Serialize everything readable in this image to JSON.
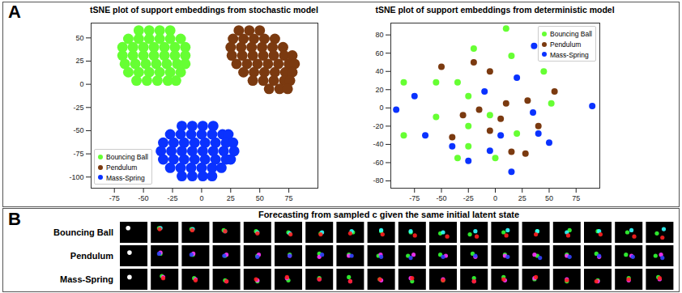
{
  "panel_labels": [
    "A",
    "B"
  ],
  "chart_data": [
    {
      "type": "scatter",
      "title": "tSNE plot of support embeddings from stochastic model",
      "xlim": [
        -95,
        100
      ],
      "ylim": [
        -112,
        66
      ],
      "xticks": [
        -75,
        -50,
        -25,
        0,
        25,
        50,
        75
      ],
      "yticks": [
        -100,
        -75,
        -50,
        -25,
        0,
        25,
        50
      ],
      "legend": "lower left",
      "grid": false,
      "series": [
        {
          "name": "Bouncing Ball",
          "color": "#66ff33",
          "marker": "circle",
          "x": [
            -54,
            -45,
            -36,
            -27,
            -63,
            -54,
            -45,
            -36,
            -27,
            -18,
            -68,
            -59,
            -50,
            -41,
            -32,
            -23,
            -14,
            -68,
            -59,
            -50,
            -41,
            -32,
            -23,
            -14,
            -66,
            -57,
            -48,
            -39,
            -30,
            -21,
            -14,
            -63,
            -54,
            -45,
            -36,
            -27,
            -18,
            -56,
            -47,
            -38,
            -29,
            -22
          ],
          "values": [
            58,
            58,
            58,
            58,
            49,
            49,
            49,
            49,
            49,
            49,
            40,
            40,
            40,
            40,
            40,
            40,
            40,
            31,
            31,
            31,
            31,
            31,
            31,
            31,
            22,
            22,
            22,
            22,
            22,
            22,
            22,
            13,
            13,
            13,
            13,
            13,
            13,
            4,
            4,
            4,
            4,
            4
          ]
        },
        {
          "name": "Pendulum",
          "color": "#7b3a10",
          "marker": "circle",
          "x": [
            32,
            41,
            50,
            27,
            36,
            45,
            54,
            63,
            25,
            34,
            43,
            52,
            61,
            70,
            26,
            35,
            44,
            53,
            62,
            71,
            78,
            30,
            39,
            48,
            57,
            66,
            75,
            80,
            36,
            45,
            54,
            63,
            72,
            78,
            44,
            53,
            62,
            71,
            76,
            58,
            67,
            74
          ],
          "values": [
            58,
            58,
            58,
            49,
            49,
            49,
            49,
            49,
            40,
            40,
            40,
            40,
            40,
            40,
            31,
            31,
            31,
            31,
            31,
            31,
            31,
            22,
            22,
            22,
            22,
            22,
            22,
            22,
            13,
            13,
            13,
            13,
            13,
            13,
            4,
            4,
            4,
            4,
            4,
            -5,
            -5,
            -5
          ]
        },
        {
          "name": "Mass-Spring",
          "color": "#0a32ff",
          "marker": "circle",
          "x": [
            -17,
            -8,
            1,
            10,
            -27,
            -18,
            -9,
            0,
            9,
            18,
            23,
            -33,
            -24,
            -15,
            -6,
            3,
            12,
            21,
            27,
            -35,
            -26,
            -17,
            -8,
            1,
            10,
            19,
            28,
            -33,
            -24,
            -15,
            -6,
            3,
            12,
            21,
            25,
            -27,
            -18,
            -9,
            0,
            9,
            17,
            -17,
            -8,
            1,
            9
          ],
          "values": [
            -45,
            -45,
            -45,
            -45,
            -54,
            -54,
            -54,
            -54,
            -54,
            -54,
            -54,
            -63,
            -63,
            -63,
            -63,
            -63,
            -63,
            -63,
            -63,
            -72,
            -72,
            -72,
            -72,
            -72,
            -72,
            -72,
            -72,
            -81,
            -81,
            -81,
            -81,
            -81,
            -81,
            -81,
            -81,
            -90,
            -90,
            -90,
            -90,
            -90,
            -90,
            -99,
            -99,
            -99,
            -99
          ]
        }
      ]
    },
    {
      "type": "scatter",
      "title": "tSNE plot of support embeddings from deterministic model",
      "xlim": [
        -97,
        97
      ],
      "ylim": [
        -88,
        93
      ],
      "xticks": [
        -75,
        -50,
        -25,
        0,
        25,
        50,
        75
      ],
      "yticks": [
        -80,
        -60,
        -40,
        -20,
        0,
        20,
        40,
        60,
        80
      ],
      "legend": "upper right",
      "grid": false,
      "series": [
        {
          "name": "Bouncing Ball",
          "color": "#66ff33",
          "marker": "circle",
          "x": [
            10,
            15,
            -85,
            -20,
            -35,
            -55,
            -25,
            45,
            52,
            20,
            -25,
            -55,
            -25,
            -85,
            0,
            -5,
            -35
          ],
          "values": [
            87,
            57,
            28,
            65,
            28,
            28,
            13,
            40,
            5,
            -28,
            -20,
            -10,
            -42,
            -30,
            -55,
            -8,
            -55
          ]
        },
        {
          "name": "Pendulum",
          "color": "#7b3a10",
          "marker": "circle",
          "x": [
            -50,
            -20,
            -5,
            10,
            30,
            -30,
            55,
            40,
            28,
            -15,
            -40,
            -5,
            15,
            5
          ],
          "values": [
            45,
            50,
            40,
            5,
            8,
            -8,
            18,
            -20,
            -50,
            -2,
            -32,
            -25,
            -48,
            -12
          ]
        },
        {
          "name": "Mass-Spring",
          "color": "#0a32ff",
          "marker": "circle",
          "x": [
            36,
            90,
            -92,
            -75,
            -65,
            -40,
            -25,
            15,
            50,
            40,
            20,
            35,
            -10,
            5,
            -5
          ],
          "values": [
            68,
            2,
            -2,
            13,
            -30,
            -42,
            -58,
            -70,
            -38,
            -28,
            33,
            -5,
            18,
            -30,
            -47
          ]
        }
      ]
    }
  ],
  "forecast": {
    "title": "Forecasting from sampled c given the same initial latent state",
    "rows": [
      {
        "label": "Bouncing Ball",
        "initial": {
          "color": "#ffffff",
          "x": 0.3,
          "y": 0.3
        },
        "tracks": [
          {
            "color": "#33ff33",
            "x": [
              0.3,
              0.35,
              0.4,
              0.45,
              0.5,
              0.55,
              0.6,
              0.5,
              0.45,
              0.4,
              0.35,
              0.45,
              0.55,
              0.6,
              0.5,
              0.45,
              0.4
            ],
            "y": [
              0.3,
              0.35,
              0.4,
              0.45,
              0.5,
              0.55,
              0.5,
              0.45,
              0.5,
              0.55,
              0.6,
              0.5,
              0.45,
              0.4,
              0.45,
              0.5,
              0.55
            ]
          },
          {
            "color": "#33ffff",
            "x": [
              0.35,
              0.4,
              0.45,
              0.5,
              0.55,
              0.6,
              0.55,
              0.5,
              0.45,
              0.5,
              0.55,
              0.6,
              0.55,
              0.5,
              0.55,
              0.6,
              0.65
            ],
            "y": [
              0.3,
              0.35,
              0.45,
              0.5,
              0.55,
              0.5,
              0.45,
              0.4,
              0.45,
              0.5,
              0.45,
              0.4,
              0.45,
              0.5,
              0.45,
              0.4,
              0.35
            ]
          },
          {
            "color": "#ff2020",
            "x": [
              0.32,
              0.38,
              0.45,
              0.5,
              0.58,
              0.55,
              0.5,
              0.55,
              0.6,
              0.65,
              0.6,
              0.55,
              0.5,
              0.55,
              0.6,
              0.7,
              0.6
            ],
            "y": [
              0.35,
              0.4,
              0.45,
              0.55,
              0.6,
              0.6,
              0.55,
              0.6,
              0.65,
              0.7,
              0.7,
              0.65,
              0.6,
              0.65,
              0.6,
              0.7,
              0.75
            ]
          }
        ]
      },
      {
        "label": "Pendulum",
        "initial": {
          "color": "#ffffff",
          "x": 0.35,
          "y": 0.35
        },
        "tracks": [
          {
            "color": "#33ff33",
            "x": [
              0.35,
              0.4,
              0.45,
              0.5,
              0.55,
              0.5,
              0.45,
              0.4,
              0.35,
              0.4,
              0.45,
              0.5,
              0.55,
              0.5,
              0.45,
              0.4,
              0.35
            ],
            "y": [
              0.4,
              0.45,
              0.5,
              0.5,
              0.45,
              0.4,
              0.45,
              0.5,
              0.5,
              0.45,
              0.4,
              0.45,
              0.5,
              0.45,
              0.4,
              0.45,
              0.5
            ]
          },
          {
            "color": "#ff33ff",
            "x": [
              0.35,
              0.42,
              0.5,
              0.55,
              0.55,
              0.5,
              0.45,
              0.48,
              0.55,
              0.6,
              0.55,
              0.5,
              0.45,
              0.5,
              0.55,
              0.6,
              0.55
            ],
            "y": [
              0.35,
              0.4,
              0.45,
              0.45,
              0.5,
              0.55,
              0.5,
              0.45,
              0.45,
              0.5,
              0.55,
              0.5,
              0.45,
              0.5,
              0.55,
              0.5,
              0.45
            ]
          },
          {
            "color": "#3344ff",
            "x": [
              0.3,
              0.35,
              0.42,
              0.5,
              0.55,
              0.6,
              0.55,
              0.5,
              0.45,
              0.5,
              0.55,
              0.6,
              0.65,
              0.6,
              0.55,
              0.65,
              0.6
            ],
            "y": [
              0.4,
              0.45,
              0.5,
              0.55,
              0.5,
              0.45,
              0.5,
              0.55,
              0.6,
              0.55,
              0.5,
              0.55,
              0.6,
              0.55,
              0.5,
              0.55,
              0.6
            ]
          }
        ]
      },
      {
        "label": "Mass-Spring",
        "initial": {
          "color": "#ffffff",
          "x": 0.35,
          "y": 0.4
        },
        "tracks": [
          {
            "color": "#33ff33",
            "x": [
              0.4,
              0.45,
              0.45,
              0.5,
              0.5,
              0.5,
              0.45,
              0.45,
              0.5,
              0.5,
              0.5,
              0.45,
              0.45,
              0.5,
              0.5,
              0.5,
              0.45
            ],
            "y": [
              0.35,
              0.45,
              0.55,
              0.6,
              0.55,
              0.45,
              0.4,
              0.5,
              0.6,
              0.55,
              0.45,
              0.4,
              0.5,
              0.6,
              0.55,
              0.45,
              0.4
            ]
          },
          {
            "color": "#ff33ff",
            "x": [
              0.45,
              0.5,
              0.5,
              0.5,
              0.45,
              0.5,
              0.5,
              0.5,
              0.45,
              0.5,
              0.5,
              0.5,
              0.45,
              0.5,
              0.5,
              0.5,
              0.5
            ],
            "y": [
              0.4,
              0.5,
              0.6,
              0.55,
              0.45,
              0.5,
              0.6,
              0.55,
              0.45,
              0.5,
              0.6,
              0.55,
              0.45,
              0.5,
              0.6,
              0.55,
              0.5
            ]
          },
          {
            "color": "#ff2020",
            "x": [
              0.45,
              0.5,
              0.5,
              0.45,
              0.45,
              0.5,
              0.5,
              0.45,
              0.5,
              0.5,
              0.5,
              0.45,
              0.5,
              0.5,
              0.45,
              0.5,
              0.5
            ],
            "y": [
              0.45,
              0.55,
              0.6,
              0.5,
              0.4,
              0.5,
              0.6,
              0.5,
              0.45,
              0.55,
              0.6,
              0.5,
              0.4,
              0.55,
              0.6,
              0.5,
              0.45
            ]
          }
        ]
      }
    ]
  }
}
